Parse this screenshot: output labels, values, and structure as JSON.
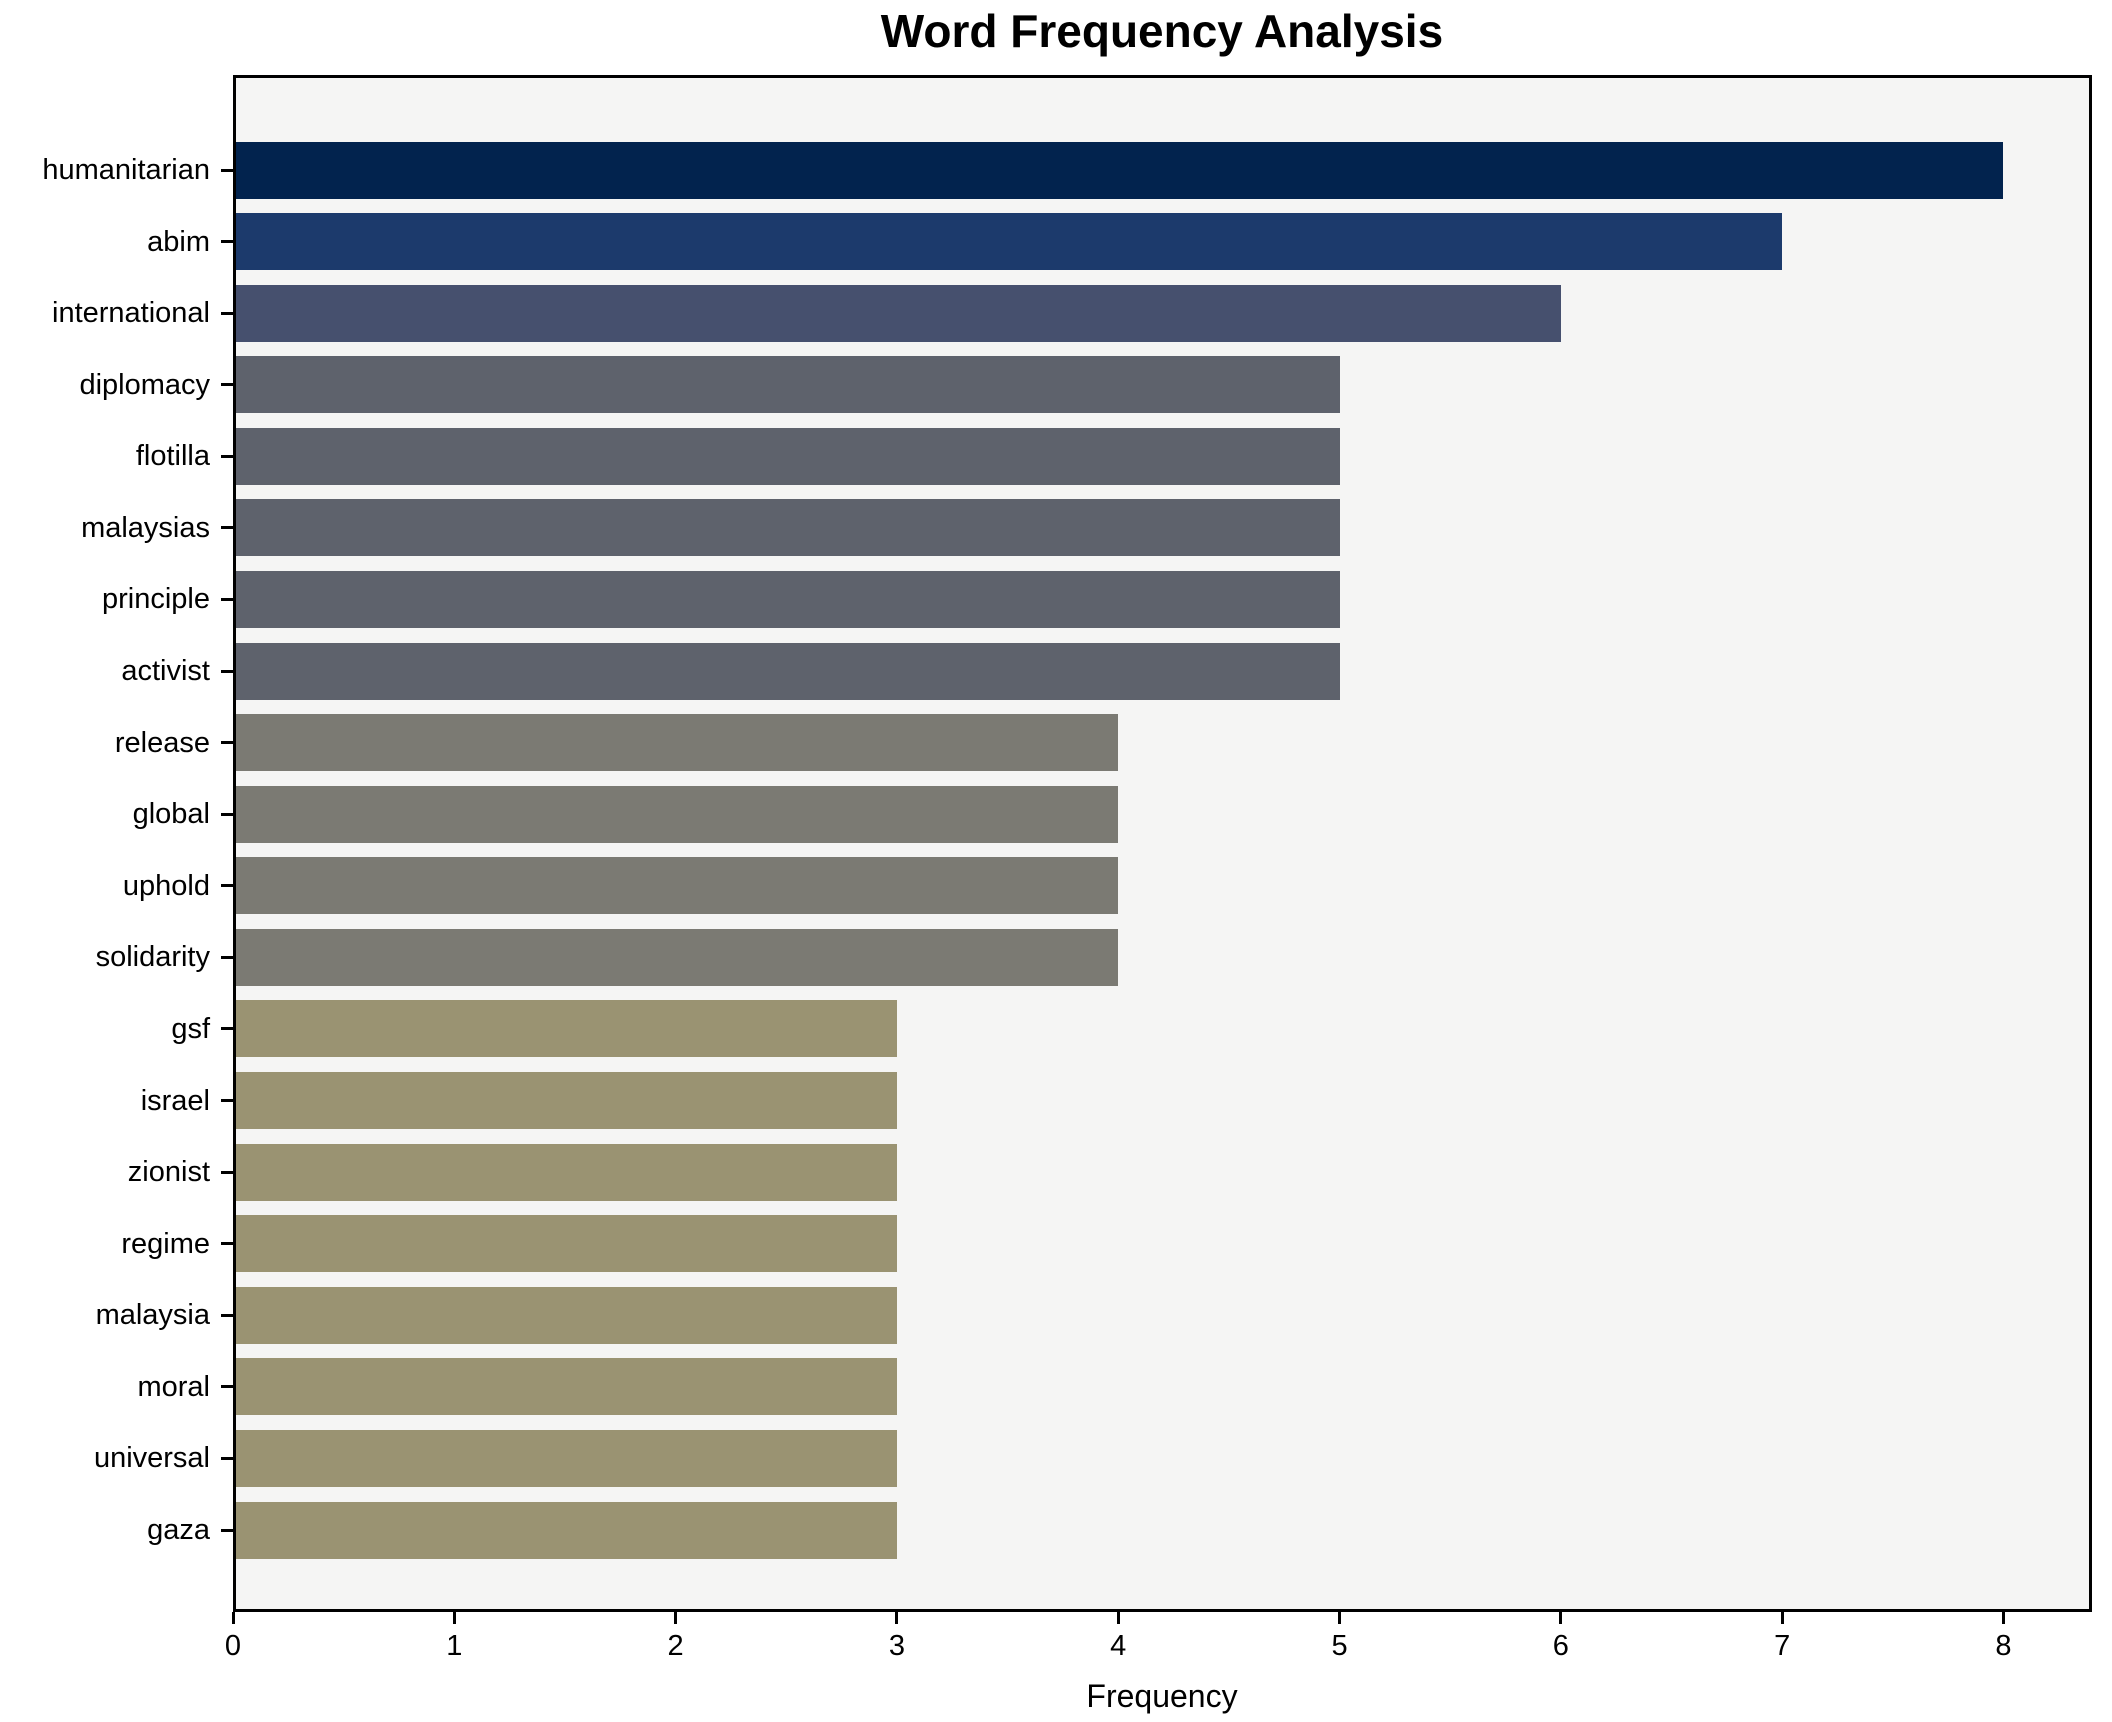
{
  "figure": {
    "background": "#ffffff",
    "plot_background": "#f5f5f4",
    "spine_color": "#000000",
    "text_color": "#000000"
  },
  "chart_data": {
    "type": "bar",
    "orientation": "horizontal",
    "title": "Word Frequency Analysis",
    "xlabel": "Frequency",
    "ylabel": "",
    "categories": [
      "humanitarian",
      "abim",
      "international",
      "diplomacy",
      "flotilla",
      "malaysias",
      "principle",
      "activist",
      "release",
      "global",
      "uphold",
      "solidarity",
      "gsf",
      "israel",
      "zionist",
      "regime",
      "malaysia",
      "moral",
      "universal",
      "gaza"
    ],
    "values": [
      8,
      7,
      6,
      5,
      5,
      5,
      5,
      5,
      4,
      4,
      4,
      4,
      3,
      3,
      3,
      3,
      3,
      3,
      3,
      3
    ],
    "bar_colors": [
      "#02234e",
      "#1c3a6c",
      "#46506e",
      "#5e626c",
      "#5e626c",
      "#5e626c",
      "#5e626c",
      "#5e626c",
      "#7b7a73",
      "#7b7a73",
      "#7b7a73",
      "#7b7a73",
      "#9a9372",
      "#9a9372",
      "#9a9372",
      "#9a9372",
      "#9a9372",
      "#9a9372",
      "#9a9372",
      "#9a9372"
    ],
    "xlim": [
      0,
      8.4
    ],
    "xticks": [
      0,
      1,
      2,
      3,
      4,
      5,
      6,
      7,
      8
    ],
    "grid": false,
    "legend": null
  }
}
